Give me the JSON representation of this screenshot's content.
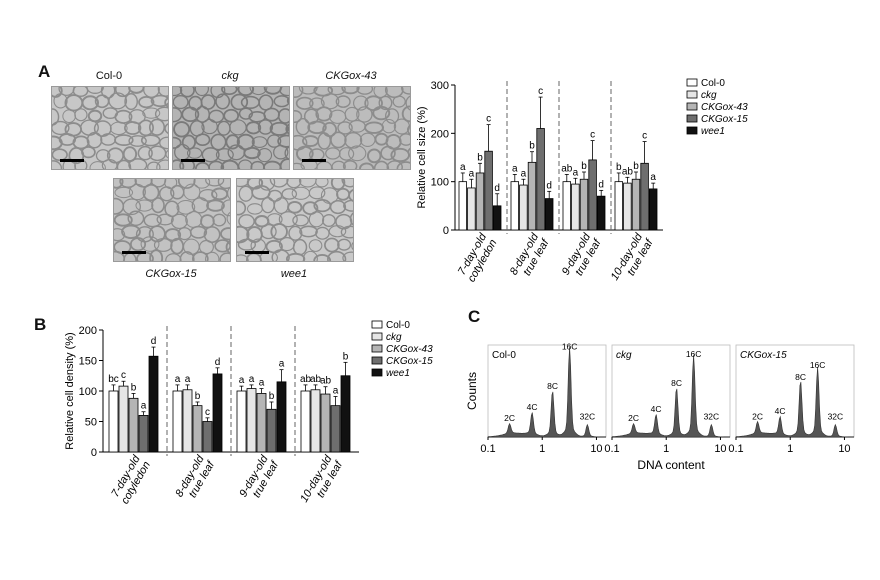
{
  "figure": {
    "panel_a_letter": "A",
    "panel_b_letter": "B",
    "panel_c_letter": "C",
    "micrographs": [
      {
        "label": "Col-0",
        "italic": false
      },
      {
        "label": "ckg",
        "italic": true
      },
      {
        "label": "CKGox-43",
        "italic": true
      },
      {
        "label": "CKGox-15",
        "italic": true
      },
      {
        "label": "wee1",
        "italic": true
      }
    ]
  },
  "chart_data": [
    {
      "type": "bar",
      "title": "",
      "ylabel": "Relative cell size (%)",
      "xlabel": "",
      "ylim": [
        0,
        300
      ],
      "yticks": [
        "0",
        "100",
        "200",
        "300"
      ],
      "categories": [
        "7-day-old cotyledon",
        "8-day-old true leaf",
        "9-day-old true leaf",
        "10-day-old true leaf"
      ],
      "category_lines": [
        [
          "7-day-old",
          "cotyledon"
        ],
        [
          "8-day-old",
          "true leaf"
        ],
        [
          "9-day-old",
          "true leaf"
        ],
        [
          "10-day-old",
          "true leaf"
        ]
      ],
      "legend": [
        "Col-0",
        "ckg",
        "CKGox-43",
        "CKGox-15",
        "wee1"
      ],
      "legend_position": "top-right",
      "colors": [
        "#ffffff",
        "#e6e6e6",
        "#b5b5b5",
        "#6e6e6e",
        "#111111"
      ],
      "series": [
        {
          "name": "Col-0",
          "values": [
            100,
            100,
            100,
            100
          ],
          "errors": [
            18,
            15,
            15,
            18
          ],
          "letters": [
            "a",
            "a",
            "ab",
            "b"
          ]
        },
        {
          "name": "ckg",
          "values": [
            87,
            93,
            95,
            97
          ],
          "errors": [
            18,
            12,
            12,
            12
          ],
          "letters": [
            "a",
            "a",
            "a",
            "ab"
          ]
        },
        {
          "name": "CKGox-43",
          "values": [
            118,
            140,
            105,
            105
          ],
          "errors": [
            20,
            22,
            15,
            15
          ],
          "letters": [
            "b",
            "b",
            "b",
            "b"
          ]
        },
        {
          "name": "CKGox-15",
          "values": [
            163,
            210,
            145,
            138
          ],
          "errors": [
            55,
            65,
            40,
            45
          ],
          "letters": [
            "c",
            "c",
            "c",
            "c"
          ]
        },
        {
          "name": "wee1",
          "values": [
            50,
            65,
            70,
            85
          ],
          "errors": [
            25,
            15,
            12,
            12
          ],
          "letters": [
            "d",
            "d",
            "d",
            "a"
          ]
        }
      ]
    },
    {
      "type": "bar",
      "title": "",
      "ylabel": "Relative cell density (%)",
      "xlabel": "",
      "ylim": [
        0,
        200
      ],
      "yticks": [
        "0",
        "50",
        "100",
        "150",
        "200"
      ],
      "categories": [
        "7-day-old cotyledon",
        "8-day-old true leaf",
        "9-day-old true leaf",
        "10-day-old true leaf"
      ],
      "category_lines": [
        [
          "7-day-old",
          "cotyledon"
        ],
        [
          "8-day-old",
          "true leaf"
        ],
        [
          "9-day-old",
          "true leaf"
        ],
        [
          "10-day-old",
          "true leaf"
        ]
      ],
      "legend": [
        "Col-0",
        "ckg",
        "CKGox-43",
        "CKGox-15",
        "wee1"
      ],
      "legend_position": "top-right",
      "colors": [
        "#ffffff",
        "#e6e6e6",
        "#b5b5b5",
        "#6e6e6e",
        "#111111"
      ],
      "series": [
        {
          "name": "Col-0",
          "values": [
            100,
            100,
            100,
            100
          ],
          "errors": [
            10,
            10,
            8,
            10
          ],
          "letters": [
            "bc",
            "a",
            "a",
            "ab"
          ]
        },
        {
          "name": "ckg",
          "values": [
            108,
            102,
            104,
            102
          ],
          "errors": [
            8,
            8,
            6,
            8
          ],
          "letters": [
            "c",
            "a",
            "a",
            "ab"
          ]
        },
        {
          "name": "CKGox-43",
          "values": [
            88,
            76,
            96,
            95
          ],
          "errors": [
            8,
            6,
            8,
            12
          ],
          "letters": [
            "b",
            "b",
            "a",
            "ab"
          ]
        },
        {
          "name": "CKGox-15",
          "values": [
            60,
            50,
            70,
            76
          ],
          "errors": [
            6,
            6,
            12,
            15
          ],
          "letters": [
            "a",
            "c",
            "b",
            "a"
          ]
        },
        {
          "name": "wee1",
          "values": [
            157,
            128,
            115,
            125
          ],
          "errors": [
            15,
            10,
            20,
            22
          ],
          "letters": [
            "d",
            "d",
            "a",
            "b"
          ]
        }
      ]
    },
    {
      "type": "area",
      "title": "",
      "xlabel": "DNA content",
      "ylabel": "Counts",
      "x_scale": "log",
      "xlim": [
        0.1,
        15
      ],
      "xticks": [
        "0.1",
        "1",
        "10"
      ],
      "panels": [
        {
          "name": "Col-0",
          "peaks": [
            {
              "label": "2C",
              "x": 0.25,
              "h": 0.1
            },
            {
              "label": "4C",
              "x": 0.65,
              "h": 0.22
            },
            {
              "label": "8C",
              "x": 1.55,
              "h": 0.45
            },
            {
              "label": "16C",
              "x": 3.2,
              "h": 0.88
            },
            {
              "label": "32C",
              "x": 6.8,
              "h": 0.12
            }
          ]
        },
        {
          "name": "ckg",
          "peaks": [
            {
              "label": "2C",
              "x": 0.25,
              "h": 0.1
            },
            {
              "label": "4C",
              "x": 0.65,
              "h": 0.2
            },
            {
              "label": "8C",
              "x": 1.55,
              "h": 0.48
            },
            {
              "label": "16C",
              "x": 3.2,
              "h": 0.8
            },
            {
              "label": "32C",
              "x": 6.8,
              "h": 0.12
            }
          ]
        },
        {
          "name": "CKGox-15",
          "peaks": [
            {
              "label": "2C",
              "x": 0.25,
              "h": 0.12
            },
            {
              "label": "4C",
              "x": 0.65,
              "h": 0.18
            },
            {
              "label": "8C",
              "x": 1.55,
              "h": 0.55
            },
            {
              "label": "16C",
              "x": 3.2,
              "h": 0.68
            },
            {
              "label": "32C",
              "x": 6.8,
              "h": 0.12
            }
          ]
        }
      ]
    }
  ]
}
